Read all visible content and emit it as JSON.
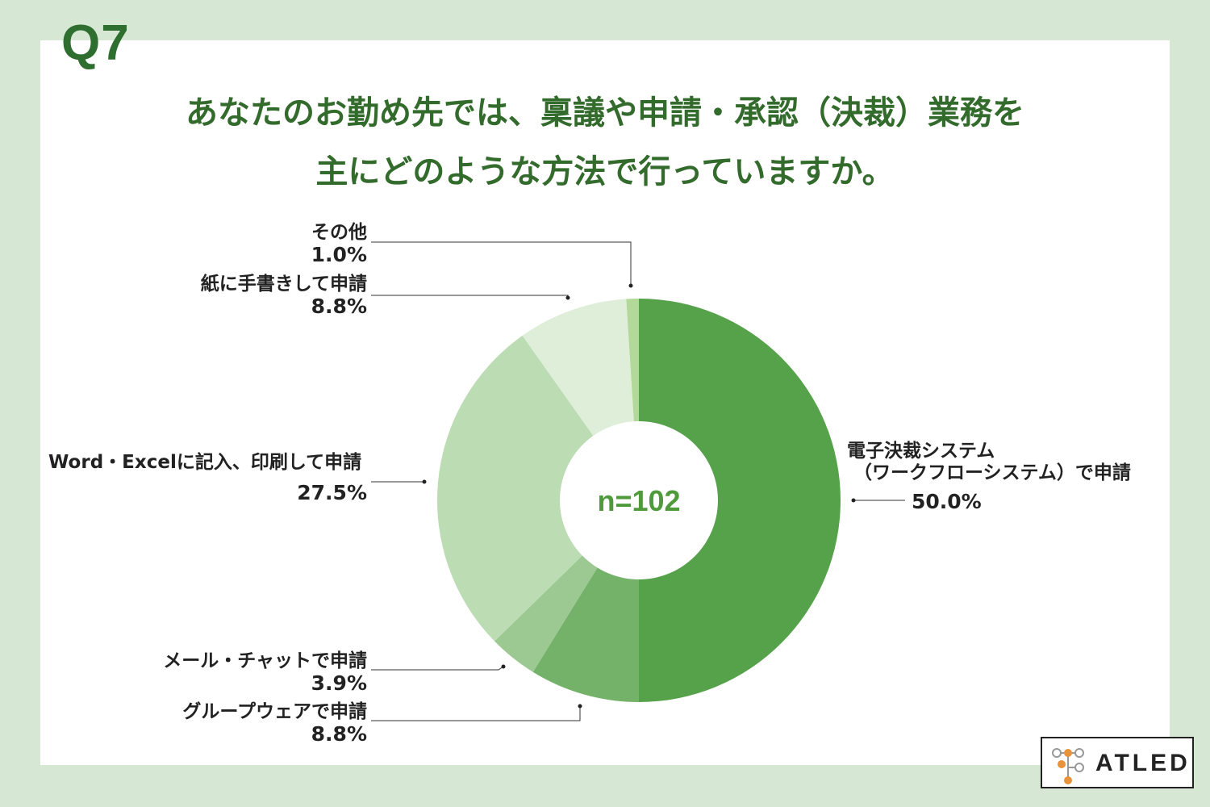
{
  "question_number": "Q7",
  "title_line1": "あなたのお勤め先では、稟議や申請・承認（決裁）業務を",
  "title_line2": "主にどのような方法で行っていますか。",
  "center_label": "n=102",
  "brand": {
    "logo_text": "ATLED"
  },
  "colors": {
    "background": "#d6e8d3",
    "title": "#336b2c",
    "center_text": "#4f9b3c"
  },
  "chart_data": {
    "type": "pie",
    "donut": true,
    "legend": "none",
    "slices": [
      {
        "label_line1": "電子決裁システム",
        "label_line2": "（ワークフローシステム）で申請",
        "value": 50.0,
        "value_label": "50.0%",
        "color": "#56a24a"
      },
      {
        "label_line1": "グループウェアで申請",
        "value": 8.8,
        "value_label": "8.8%",
        "color": "#74b26a"
      },
      {
        "label_line1": "メール・チャットで申請",
        "value": 3.9,
        "value_label": "3.9%",
        "color": "#9cc892"
      },
      {
        "label_line1": "Word・Excelに記入、印刷して申請",
        "value": 27.5,
        "value_label": "27.5%",
        "color": "#bcdcb4"
      },
      {
        "label_line1": "紙に手書きして申請",
        "value": 8.8,
        "value_label": "8.8%",
        "color": "#deeed9"
      },
      {
        "label_line1": "その他",
        "value": 1.0,
        "value_label": "1.0%",
        "color": "#b2d99a"
      }
    ]
  }
}
